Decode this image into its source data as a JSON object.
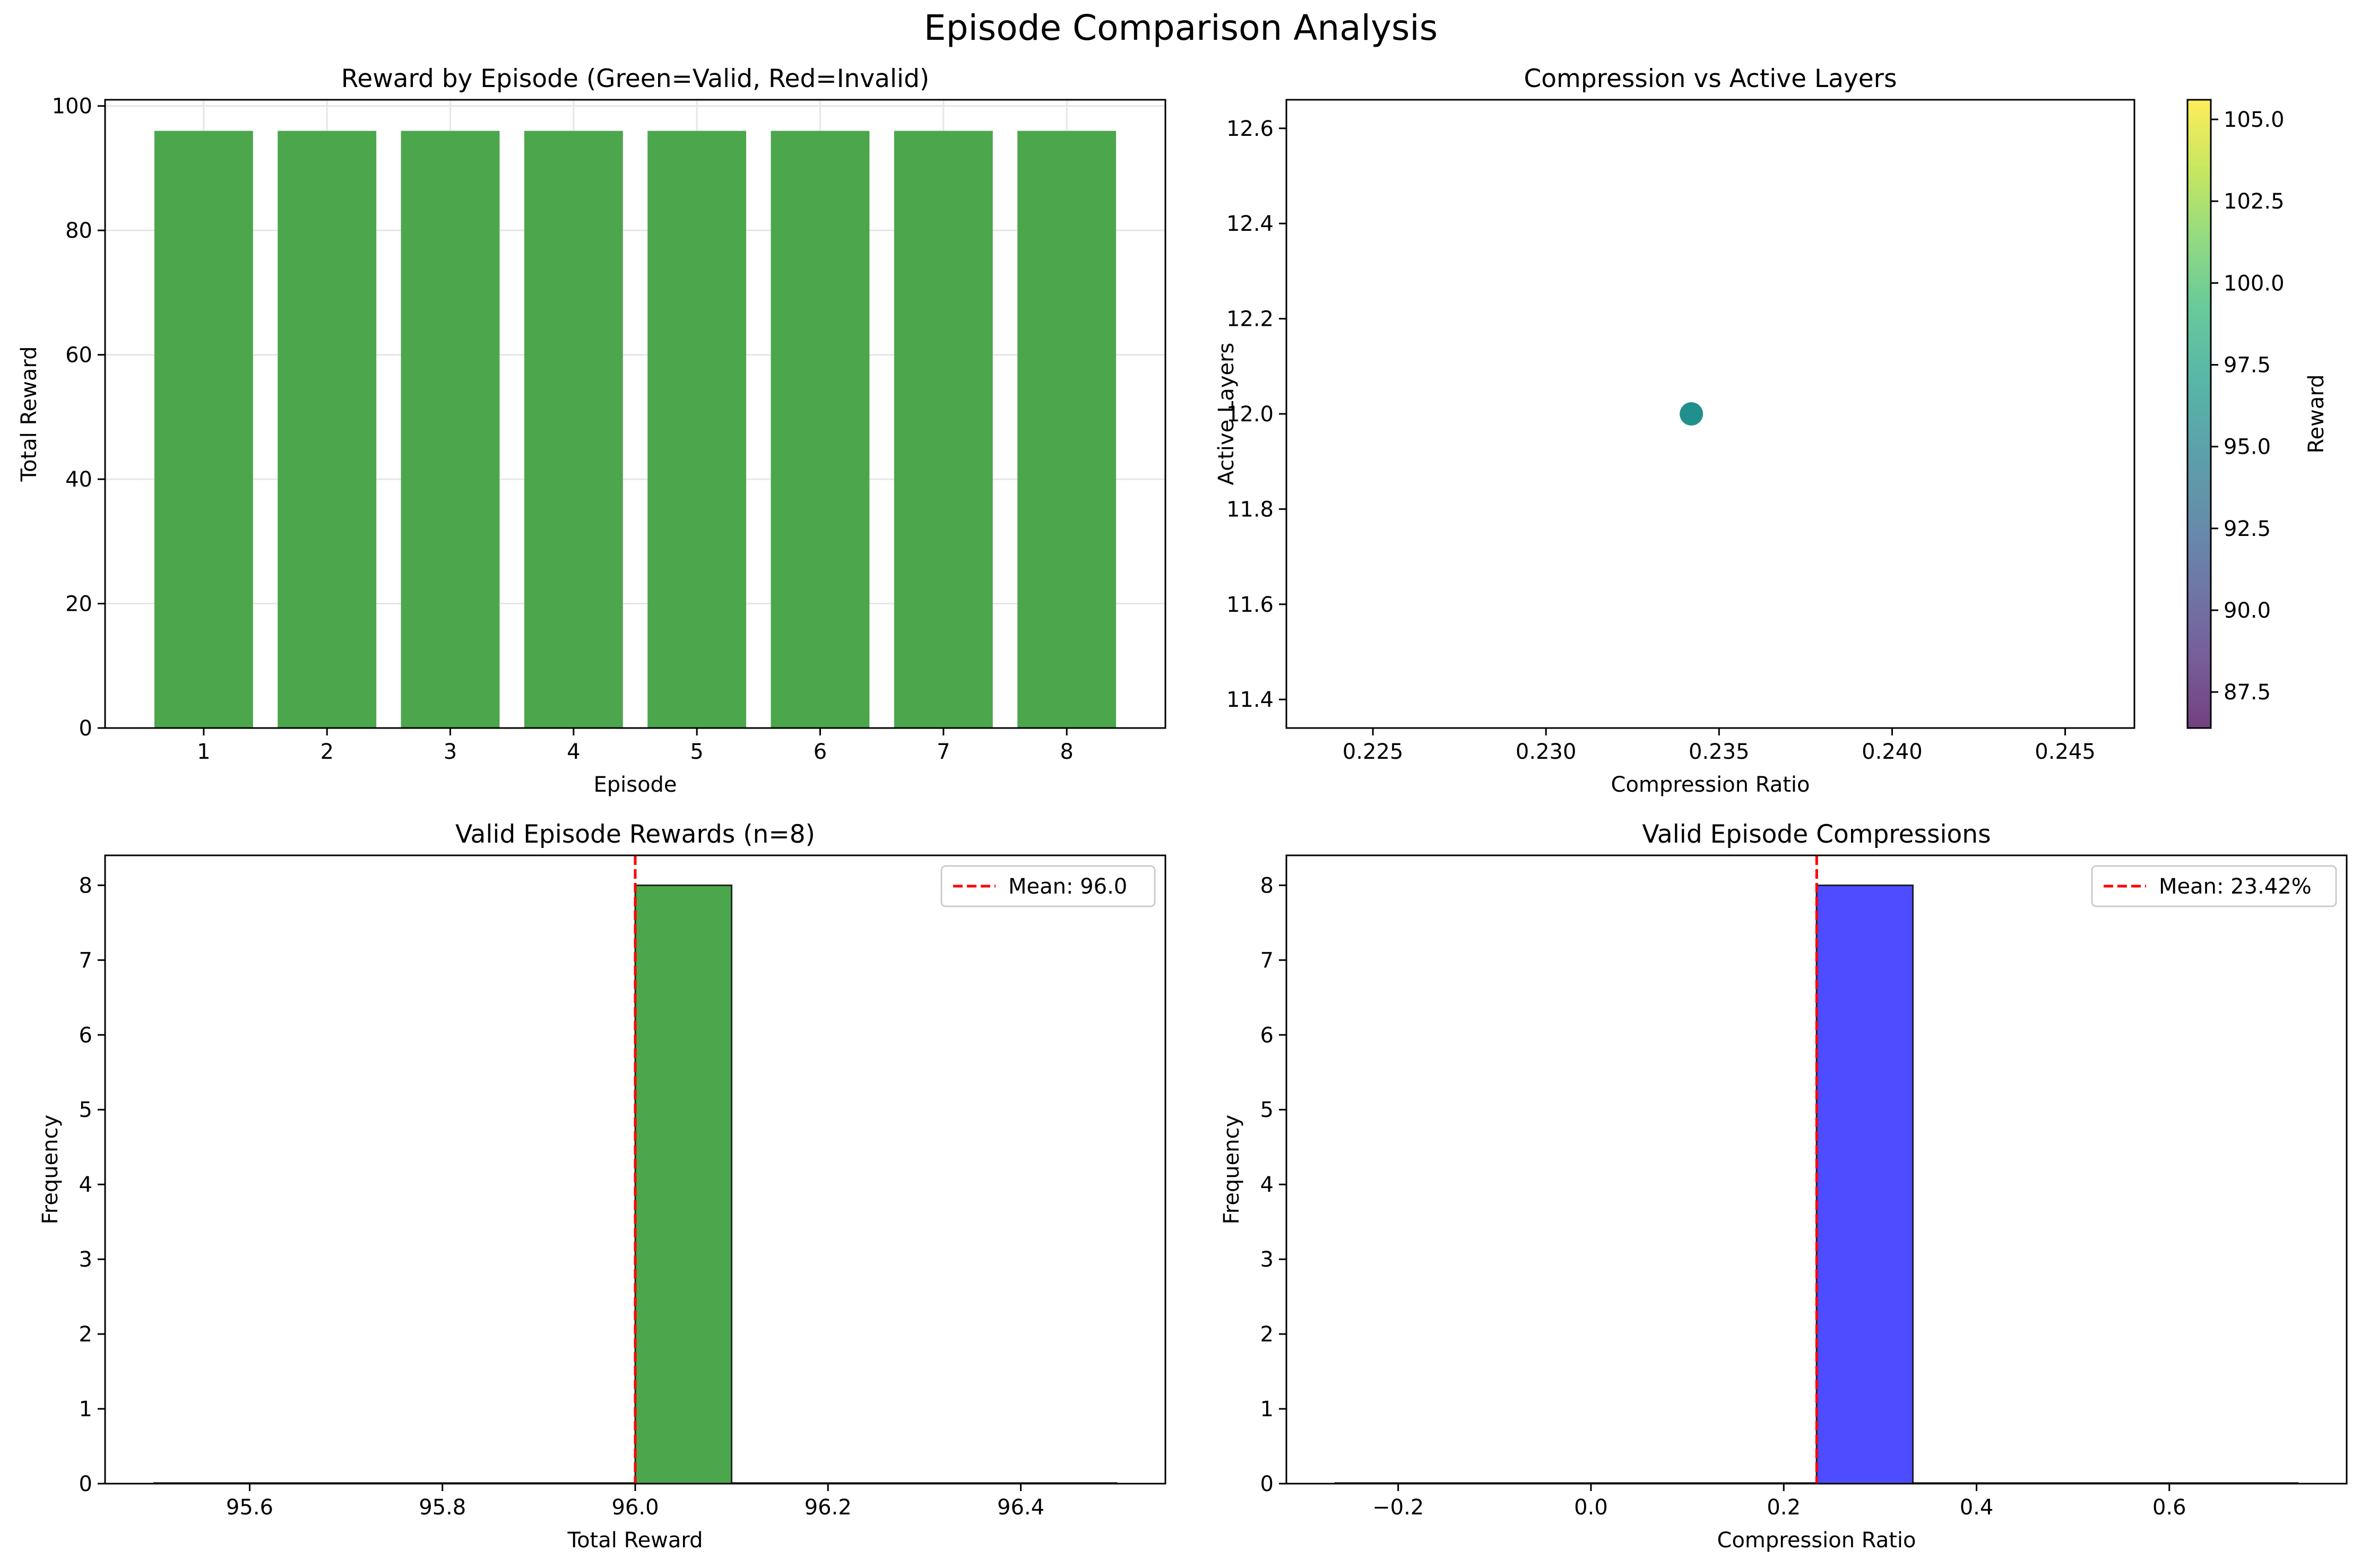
{
  "figure": {
    "title": "Episode Comparison Analysis"
  },
  "colors": {
    "valid_bar": "#4ca64c",
    "compression_bar": "#4d4dff",
    "mean_line": "#ff0000",
    "grid": "#e6e6e6",
    "scatter_point": "#21908d"
  },
  "chart_data": [
    {
      "id": "reward_by_episode",
      "type": "bar",
      "title": "Reward by Episode (Green=Valid, Red=Invalid)",
      "xlabel": "Episode",
      "ylabel": "Total Reward",
      "categories": [
        "1",
        "2",
        "3",
        "4",
        "5",
        "6",
        "7",
        "8"
      ],
      "values": [
        96,
        96,
        96,
        96,
        96,
        96,
        96,
        96
      ],
      "ylim": [
        0,
        101
      ],
      "yticks": [
        0,
        20,
        40,
        60,
        80,
        100
      ],
      "grid": true
    },
    {
      "id": "compression_vs_layers",
      "type": "scatter",
      "title": "Compression vs Active Layers",
      "xlabel": "Compression Ratio",
      "ylabel": "Active Layers",
      "points": [
        {
          "x": 0.2342,
          "y": 12.0,
          "reward": 96.0
        }
      ],
      "xlim": [
        0.2225,
        0.247
      ],
      "ylim": [
        11.34,
        12.66
      ],
      "xticks": [
        0.225,
        0.23,
        0.235,
        0.24,
        0.245
      ],
      "xtick_labels": [
        "0.225",
        "0.230",
        "0.235",
        "0.240",
        "0.245"
      ],
      "yticks": [
        11.4,
        11.6,
        11.8,
        12.0,
        12.2,
        12.4,
        12.6
      ],
      "ytick_labels": [
        "11.4",
        "11.6",
        "11.8",
        "12.0",
        "12.2",
        "12.4",
        "12.6"
      ],
      "colorbar": {
        "label": "Reward",
        "range": [
          86.4,
          105.6
        ],
        "ticks": [
          87.5,
          90.0,
          92.5,
          95.0,
          97.5,
          100.0,
          102.5,
          105.0
        ],
        "tick_labels": [
          "87.5",
          "90.0",
          "92.5",
          "95.0",
          "97.5",
          "100.0",
          "102.5",
          "105.0"
        ],
        "colormap": "viridis"
      }
    },
    {
      "id": "valid_rewards_hist",
      "type": "histogram",
      "title": "Valid Episode Rewards (n=8)",
      "xlabel": "Total Reward",
      "ylabel": "Frequency",
      "bins": [
        {
          "start": 95.5,
          "end": 95.6,
          "count": 0
        },
        {
          "start": 95.6,
          "end": 95.7,
          "count": 0
        },
        {
          "start": 95.7,
          "end": 95.8,
          "count": 0
        },
        {
          "start": 95.8,
          "end": 95.9,
          "count": 0
        },
        {
          "start": 95.9,
          "end": 96.0,
          "count": 0
        },
        {
          "start": 96.0,
          "end": 96.1,
          "count": 8
        },
        {
          "start": 96.1,
          "end": 96.2,
          "count": 0
        },
        {
          "start": 96.2,
          "end": 96.3,
          "count": 0
        },
        {
          "start": 96.3,
          "end": 96.4,
          "count": 0
        },
        {
          "start": 96.4,
          "end": 96.5,
          "count": 0
        }
      ],
      "xlim": [
        95.45,
        96.55
      ],
      "ylim": [
        0,
        8.4
      ],
      "xticks": [
        95.6,
        95.8,
        96.0,
        96.2,
        96.4
      ],
      "xtick_labels": [
        "95.6",
        "95.8",
        "96.0",
        "96.2",
        "96.4"
      ],
      "yticks": [
        0,
        1,
        2,
        3,
        4,
        5,
        6,
        7,
        8
      ],
      "mean": 96.0,
      "legend": "Mean: 96.0",
      "legend_position": "upper right"
    },
    {
      "id": "valid_compressions_hist",
      "type": "histogram",
      "title": "Valid Episode Compressions",
      "xlabel": "Compression Ratio",
      "ylabel": "Frequency",
      "bins": [
        {
          "start": -0.266,
          "end": -0.166,
          "count": 0
        },
        {
          "start": -0.166,
          "end": -0.066,
          "count": 0
        },
        {
          "start": -0.066,
          "end": 0.034,
          "count": 0
        },
        {
          "start": 0.034,
          "end": 0.134,
          "count": 0
        },
        {
          "start": 0.134,
          "end": 0.234,
          "count": 0
        },
        {
          "start": 0.234,
          "end": 0.334,
          "count": 8
        },
        {
          "start": 0.334,
          "end": 0.434,
          "count": 0
        },
        {
          "start": 0.434,
          "end": 0.534,
          "count": 0
        },
        {
          "start": 0.534,
          "end": 0.634,
          "count": 0
        },
        {
          "start": 0.634,
          "end": 0.734,
          "count": 0
        }
      ],
      "xlim": [
        -0.316,
        0.784
      ],
      "ylim": [
        0,
        8.4
      ],
      "xticks": [
        -0.2,
        0.0,
        0.2,
        0.4,
        0.6
      ],
      "xtick_labels": [
        "−0.2",
        "0.0",
        "0.2",
        "0.4",
        "0.6"
      ],
      "yticks": [
        0,
        1,
        2,
        3,
        4,
        5,
        6,
        7,
        8
      ],
      "mean": 0.2342,
      "legend": "Mean: 23.42%",
      "legend_position": "upper right"
    }
  ]
}
